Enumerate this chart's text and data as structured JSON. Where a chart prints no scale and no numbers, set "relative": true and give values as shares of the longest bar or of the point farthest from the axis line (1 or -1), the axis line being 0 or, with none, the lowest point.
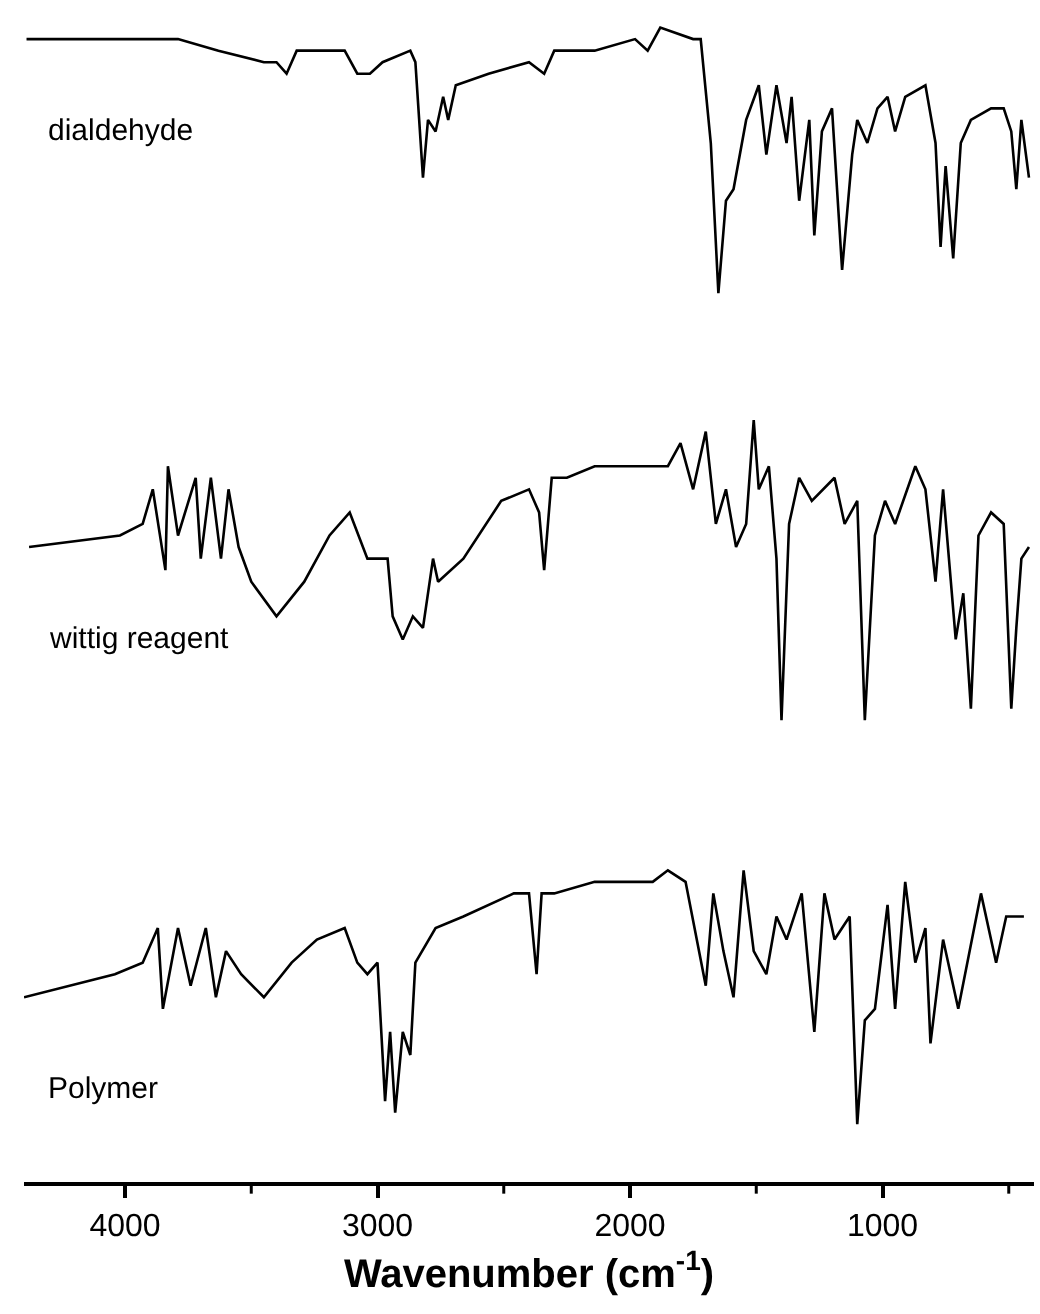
{
  "chart_data": {
    "type": "line",
    "relative": true,
    "xlabel": "Wavenumber (cm$^{-1}$)",
    "xlim": [
      4400,
      400
    ],
    "xticks": [
      4000,
      {
        "value": 3500,
        "label": null
      },
      3000,
      {
        "value": 2500,
        "label": null
      },
      2000,
      {
        "value": 1500,
        "label": null
      },
      1000,
      {
        "value": 500,
        "label": null
      }
    ],
    "legend": false,
    "marker": "none",
    "line_style": "solid",
    "series": [
      {
        "name": "dialdehyde",
        "color": "#000000",
        "x": [
          4390,
          4080,
          4040,
          3870,
          3790,
          3630,
          3450,
          3400,
          3360,
          3320,
          3240,
          3130,
          3080,
          3030,
          2980,
          2870,
          2850,
          2820,
          2800,
          2770,
          2740,
          2720,
          2690,
          2560,
          2400,
          2340,
          2300,
          2140,
          1980,
          1930,
          1880,
          1750,
          1720,
          1680,
          1650,
          1620,
          1590,
          1540,
          1490,
          1460,
          1420,
          1380,
          1360,
          1330,
          1290,
          1270,
          1240,
          1200,
          1160,
          1120,
          1100,
          1060,
          1020,
          980,
          950,
          910,
          830,
          790,
          770,
          750,
          720,
          690,
          650,
          570,
          520,
          490,
          470,
          450,
          420
        ],
        "values": [
          0.99,
          0.99,
          0.99,
          0.99,
          0.99,
          0.98,
          0.97,
          0.97,
          0.96,
          0.98,
          0.98,
          0.98,
          0.96,
          0.96,
          0.97,
          0.98,
          0.97,
          0.87,
          0.92,
          0.91,
          0.94,
          0.92,
          0.95,
          0.96,
          0.97,
          0.96,
          0.98,
          0.98,
          0.99,
          0.98,
          1.0,
          0.99,
          0.99,
          0.9,
          0.77,
          0.85,
          0.86,
          0.92,
          0.95,
          0.89,
          0.95,
          0.9,
          0.94,
          0.85,
          0.92,
          0.82,
          0.91,
          0.93,
          0.79,
          0.89,
          0.92,
          0.9,
          0.93,
          0.94,
          0.91,
          0.94,
          0.95,
          0.9,
          0.81,
          0.88,
          0.8,
          0.9,
          0.92,
          0.93,
          0.93,
          0.91,
          0.86,
          0.92,
          0.87
        ]
      },
      {
        "name": "wittig reagent",
        "color": "#000000",
        "x": [
          4380,
          4020,
          3930,
          3890,
          3840,
          3830,
          3790,
          3720,
          3700,
          3660,
          3620,
          3590,
          3550,
          3500,
          3400,
          3290,
          3190,
          3110,
          3040,
          3000,
          2960,
          2940,
          2900,
          2860,
          2820,
          2780,
          2760,
          2660,
          2510,
          2400,
          2360,
          2340,
          2310,
          2250,
          2140,
          1930,
          1850,
          1800,
          1750,
          1700,
          1660,
          1620,
          1580,
          1540,
          1510,
          1490,
          1450,
          1420,
          1400,
          1370,
          1330,
          1280,
          1190,
          1150,
          1100,
          1070,
          1030,
          990,
          950,
          870,
          830,
          790,
          760,
          710,
          680,
          650,
          620,
          570,
          520,
          490,
          470,
          450,
          420
        ],
        "values": [
          0.55,
          0.56,
          0.57,
          0.6,
          0.53,
          0.62,
          0.56,
          0.61,
          0.54,
          0.61,
          0.54,
          0.6,
          0.55,
          0.52,
          0.49,
          0.52,
          0.56,
          0.58,
          0.54,
          0.54,
          0.54,
          0.49,
          0.47,
          0.49,
          0.48,
          0.54,
          0.52,
          0.54,
          0.59,
          0.6,
          0.58,
          0.53,
          0.61,
          0.61,
          0.62,
          0.62,
          0.62,
          0.64,
          0.6,
          0.65,
          0.57,
          0.6,
          0.55,
          0.57,
          0.66,
          0.6,
          0.62,
          0.54,
          0.4,
          0.57,
          0.61,
          0.59,
          0.61,
          0.57,
          0.59,
          0.4,
          0.56,
          0.59,
          0.57,
          0.62,
          0.6,
          0.52,
          0.6,
          0.47,
          0.51,
          0.41,
          0.56,
          0.58,
          0.57,
          0.41,
          0.48,
          0.54,
          0.55
        ]
      },
      {
        "name": "Polymer",
        "color": "#000000",
        "x": [
          4400,
          4040,
          3930,
          3870,
          3850,
          3790,
          3740,
          3680,
          3640,
          3600,
          3540,
          3450,
          3340,
          3240,
          3130,
          3080,
          3040,
          3000,
          2970,
          2950,
          2930,
          2900,
          2870,
          2850,
          2770,
          2660,
          2460,
          2400,
          2370,
          2350,
          2300,
          2140,
          1980,
          1910,
          1850,
          1780,
          1700,
          1670,
          1630,
          1590,
          1550,
          1510,
          1460,
          1420,
          1380,
          1320,
          1270,
          1230,
          1190,
          1130,
          1100,
          1070,
          1030,
          980,
          950,
          910,
          870,
          830,
          810,
          760,
          700,
          610,
          550,
          510,
          440
        ],
        "values": [
          0.16,
          0.18,
          0.19,
          0.22,
          0.15,
          0.22,
          0.17,
          0.22,
          0.16,
          0.2,
          0.18,
          0.16,
          0.19,
          0.21,
          0.22,
          0.19,
          0.18,
          0.19,
          0.07,
          0.13,
          0.06,
          0.13,
          0.11,
          0.19,
          0.22,
          0.23,
          0.25,
          0.25,
          0.18,
          0.25,
          0.25,
          0.26,
          0.26,
          0.26,
          0.27,
          0.26,
          0.17,
          0.25,
          0.2,
          0.16,
          0.27,
          0.2,
          0.18,
          0.23,
          0.21,
          0.25,
          0.13,
          0.25,
          0.21,
          0.23,
          0.05,
          0.14,
          0.15,
          0.24,
          0.15,
          0.26,
          0.19,
          0.22,
          0.12,
          0.21,
          0.15,
          0.25,
          0.19,
          0.23,
          0.23
        ]
      }
    ]
  }
}
